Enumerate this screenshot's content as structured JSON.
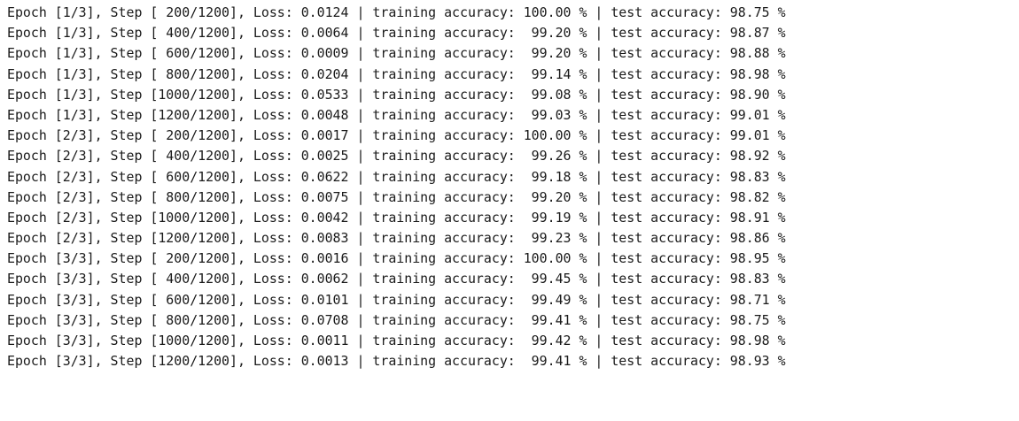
{
  "output": {
    "lines": [
      "Epoch [1/3], Step [ 200/1200], Loss: 0.0124 | training accuracy: 100.00 % | test accuracy: 98.75 %",
      "Epoch [1/3], Step [ 400/1200], Loss: 0.0064 | training accuracy:  99.20 % | test accuracy: 98.87 %",
      "Epoch [1/3], Step [ 600/1200], Loss: 0.0009 | training accuracy:  99.20 % | test accuracy: 98.88 %",
      "Epoch [1/3], Step [ 800/1200], Loss: 0.0204 | training accuracy:  99.14 % | test accuracy: 98.98 %",
      "Epoch [1/3], Step [1000/1200], Loss: 0.0533 | training accuracy:  99.08 % | test accuracy: 98.90 %",
      "Epoch [1/3], Step [1200/1200], Loss: 0.0048 | training accuracy:  99.03 % | test accuracy: 99.01 %",
      "Epoch [2/3], Step [ 200/1200], Loss: 0.0017 | training accuracy: 100.00 % | test accuracy: 99.01 %",
      "Epoch [2/3], Step [ 400/1200], Loss: 0.0025 | training accuracy:  99.26 % | test accuracy: 98.92 %",
      "Epoch [2/3], Step [ 600/1200], Loss: 0.0622 | training accuracy:  99.18 % | test accuracy: 98.83 %",
      "Epoch [2/3], Step [ 800/1200], Loss: 0.0075 | training accuracy:  99.20 % | test accuracy: 98.82 %",
      "Epoch [2/3], Step [1000/1200], Loss: 0.0042 | training accuracy:  99.19 % | test accuracy: 98.91 %",
      "Epoch [2/3], Step [1200/1200], Loss: 0.0083 | training accuracy:  99.23 % | test accuracy: 98.86 %",
      "Epoch [3/3], Step [ 200/1200], Loss: 0.0016 | training accuracy: 100.00 % | test accuracy: 98.95 %",
      "Epoch [3/3], Step [ 400/1200], Loss: 0.0062 | training accuracy:  99.45 % | test accuracy: 98.83 %",
      "Epoch [3/3], Step [ 600/1200], Loss: 0.0101 | training accuracy:  99.49 % | test accuracy: 98.71 %",
      "Epoch [3/3], Step [ 800/1200], Loss: 0.0708 | training accuracy:  99.41 % | test accuracy: 98.75 %",
      "Epoch [3/3], Step [1000/1200], Loss: 0.0011 | training accuracy:  99.42 % | test accuracy: 98.98 %",
      "Epoch [3/3], Step [1200/1200], Loss: 0.0013 | training accuracy:  99.41 % | test accuracy: 98.93 %"
    ]
  },
  "colors": {
    "background": "#ffffff",
    "text": "#1a1a1a"
  }
}
